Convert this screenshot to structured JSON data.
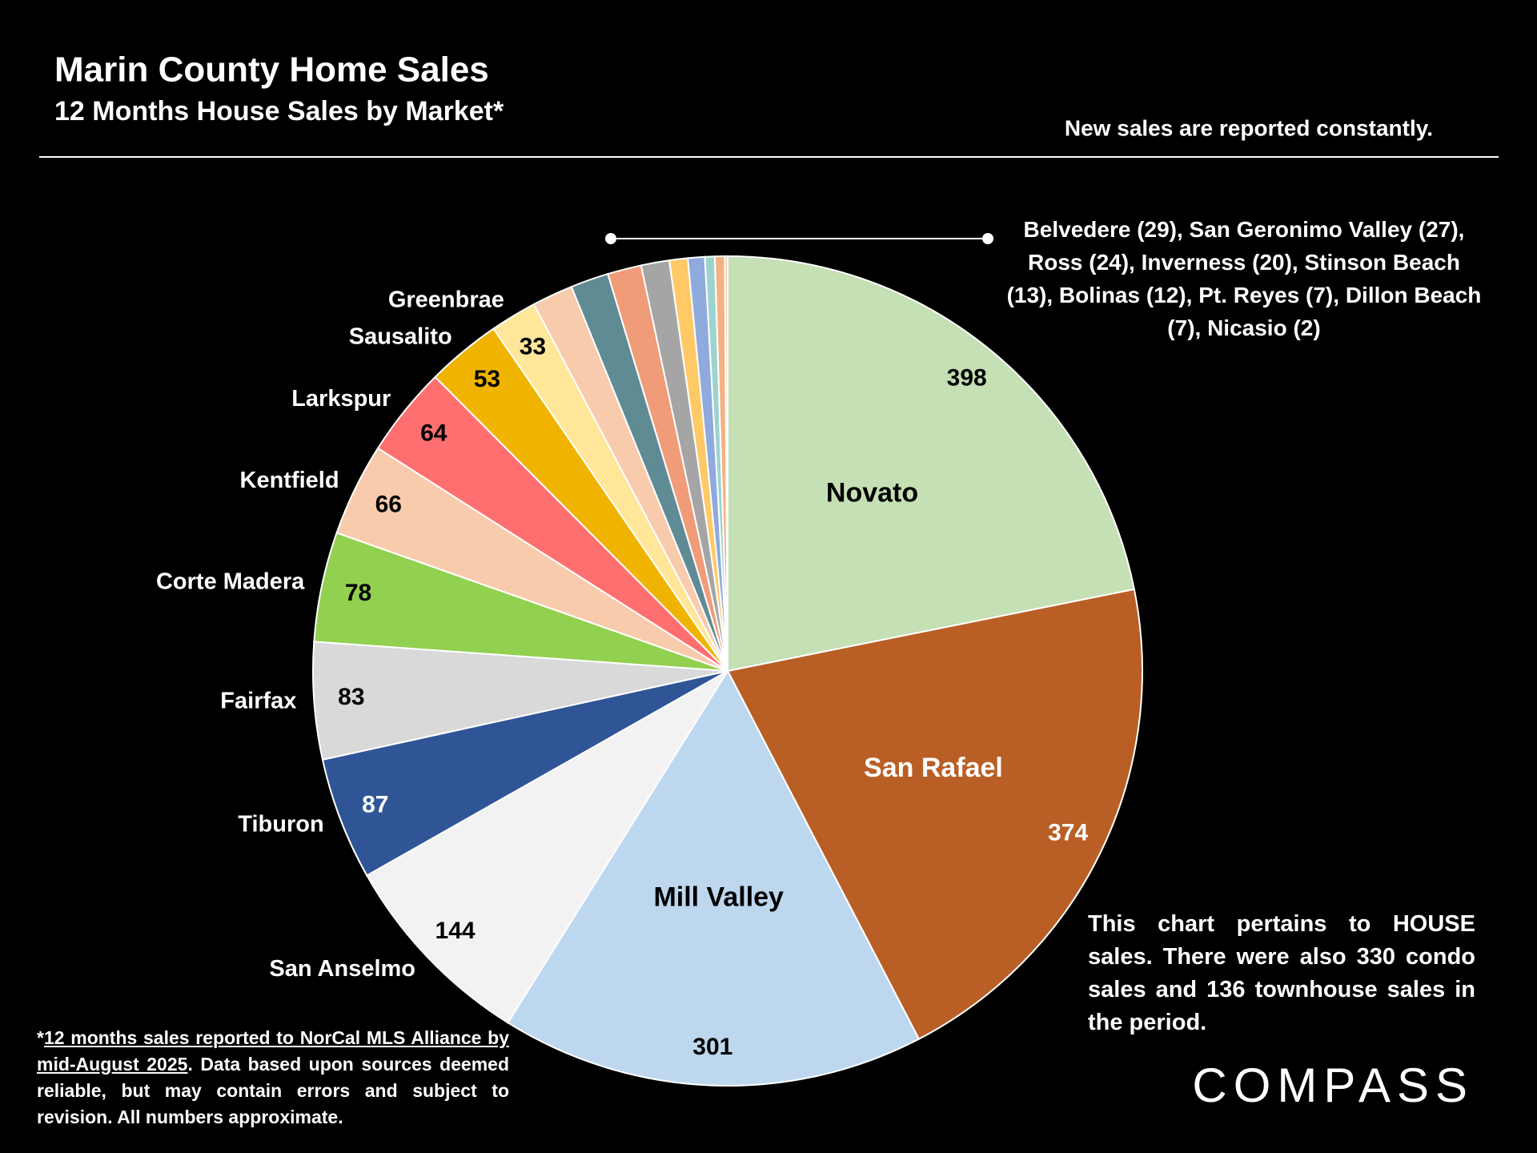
{
  "chart_data": {
    "type": "pie",
    "title": "Marin County Home Sales",
    "subtitle": "12 Months House Sales by Market*",
    "header_note": "New sales are reported constantly.",
    "categories": [
      "Novato",
      "San Rafael",
      "Mill Valley",
      "San Anselmo",
      "Tiburon",
      "Fairfax",
      "Corte Madera",
      "Kentfield",
      "Larkspur",
      "Sausalito",
      "Greenbrae",
      null,
      null,
      null,
      null,
      null,
      null,
      null,
      null,
      null
    ],
    "values": [
      398,
      374,
      301,
      144,
      87,
      83,
      78,
      66,
      64,
      53,
      33,
      29,
      27,
      24,
      20,
      13,
      12,
      7,
      7,
      2
    ],
    "colors": [
      "#c5e0b4",
      "#b95f25",
      "#bdd7ee",
      "#f2f2f2",
      "#2f5597",
      "#d9d9d9",
      "#92d050",
      "#f8cbad",
      "#ff6f6f",
      "#f0b400",
      "#ffe699",
      "#f8cbad",
      "#5f8b95",
      "#f19c79",
      "#a5a5a5",
      "#ffc966",
      "#8faadc",
      "#9dd3cf",
      "#f4b183",
      "#f8cbad"
    ],
    "annotation": "Belvedere (29), San Geronimo Valley (27), Ross (24), Inverness (20), Stinson Beach (13), Bolinas (12), Pt. Reyes (7), Dillon Beach (7), Nicasio (2)",
    "note": "This chart pertains to HOUSE sales. There were also 330 condo sales and 136 townhouse sales in the period.",
    "footnote": {
      "marker": "*",
      "underlined": "12 months sales reported to NorCal MLS Alliance by mid-August 2025",
      "rest": ". Data based upon sources deemed reliable, but may contain errors and subject to revision. All numbers approximate."
    },
    "logo": "COMPASS"
  }
}
